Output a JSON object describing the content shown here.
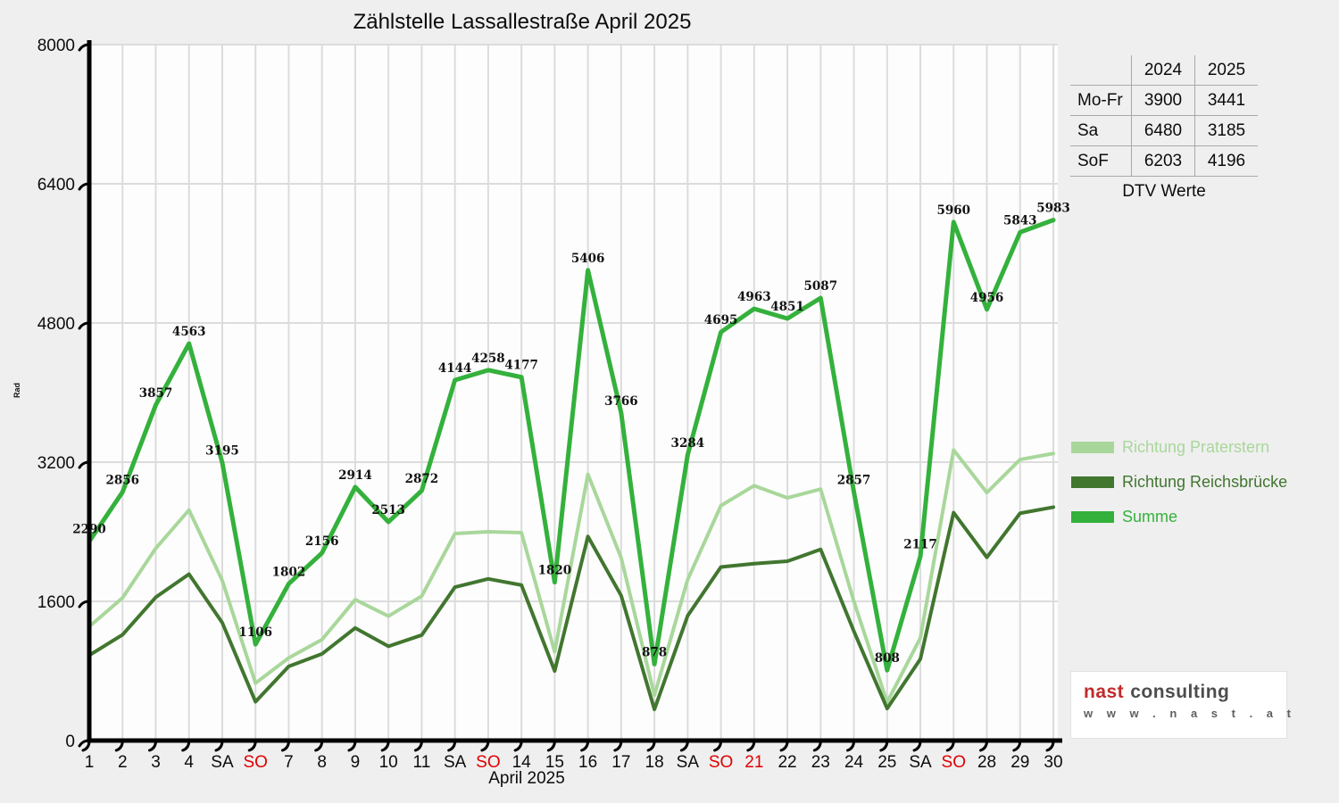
{
  "colors": {
    "red_tick": "#e00000",
    "logo_red": "#c02b2b",
    "logo_gray": "#4d4d4d",
    "grid": "#dcdcdc",
    "axis": "#000000",
    "plot_background": "#fdfdfd",
    "page_background": "#efefef"
  },
  "chart_data": {
    "type": "line",
    "title": "Zählstelle Lassallestraße April 2025",
    "xlabel": "April 2025",
    "ylabel": "Rad",
    "ylim": [
      0,
      8000
    ],
    "y_ticks": [
      0,
      1600,
      3200,
      4800,
      6400,
      8000
    ],
    "grid": true,
    "legend_position": "right",
    "categories": [
      "1",
      "2",
      "3",
      "4",
      "SA",
      "SO",
      "7",
      "8",
      "9",
      "10",
      "11",
      "SA",
      "SO",
      "14",
      "15",
      "16",
      "17",
      "18",
      "SA",
      "SO",
      "21",
      "22",
      "23",
      "24",
      "25",
      "SA",
      "SO",
      "28",
      "29",
      "30"
    ],
    "red_category_indexes": [
      5,
      12,
      19,
      20,
      26
    ],
    "series": [
      {
        "name": "Richtung Praterstern",
        "color": "#a9d79b",
        "values": [
          1310,
          1640,
          2210,
          2650,
          1840,
          660,
          950,
          1160,
          1620,
          1430,
          1660,
          2380,
          2400,
          2390,
          1020,
          3060,
          2100,
          520,
          1850,
          2700,
          2930,
          2790,
          2890,
          1600,
          440,
          1180,
          3340,
          2850,
          3230,
          3300
        ]
      },
      {
        "name": "Richtung Reichsbrücke",
        "color": "#41762f",
        "values": [
          980,
          1216,
          1647,
          1913,
          1355,
          446,
          852,
          996,
          1294,
          1083,
          1212,
          1764,
          1858,
          1787,
          800,
          2346,
          1666,
          358,
          1434,
          1995,
          2033,
          2061,
          2197,
          1257,
          368,
          937,
          2620,
          2106,
          2613,
          2683
        ]
      },
      {
        "name": "Summe",
        "color": "#34b13c",
        "show_value_labels": true,
        "values": [
          2290,
          2856,
          3857,
          4563,
          3195,
          1106,
          1802,
          2156,
          2914,
          2513,
          2872,
          4144,
          4258,
          4177,
          1820,
          5406,
          3766,
          878,
          3284,
          4695,
          4963,
          4851,
          5087,
          2857,
          808,
          2117,
          5960,
          4956,
          5843,
          5983
        ]
      }
    ]
  },
  "table": {
    "col_headers": [
      "2024",
      "2025"
    ],
    "rows": [
      {
        "label": "Mo-Fr",
        "y2024": "3900",
        "y2025": "3441"
      },
      {
        "label": "Sa",
        "y2024": "6480",
        "y2025": "3185"
      },
      {
        "label": "SoF",
        "y2024": "6203",
        "y2025": "4196"
      }
    ],
    "caption": "DTV Werte"
  },
  "logo": {
    "brand": "nast",
    "brand_suffix": "consulting",
    "url": "w w w . n a s t . a t"
  }
}
